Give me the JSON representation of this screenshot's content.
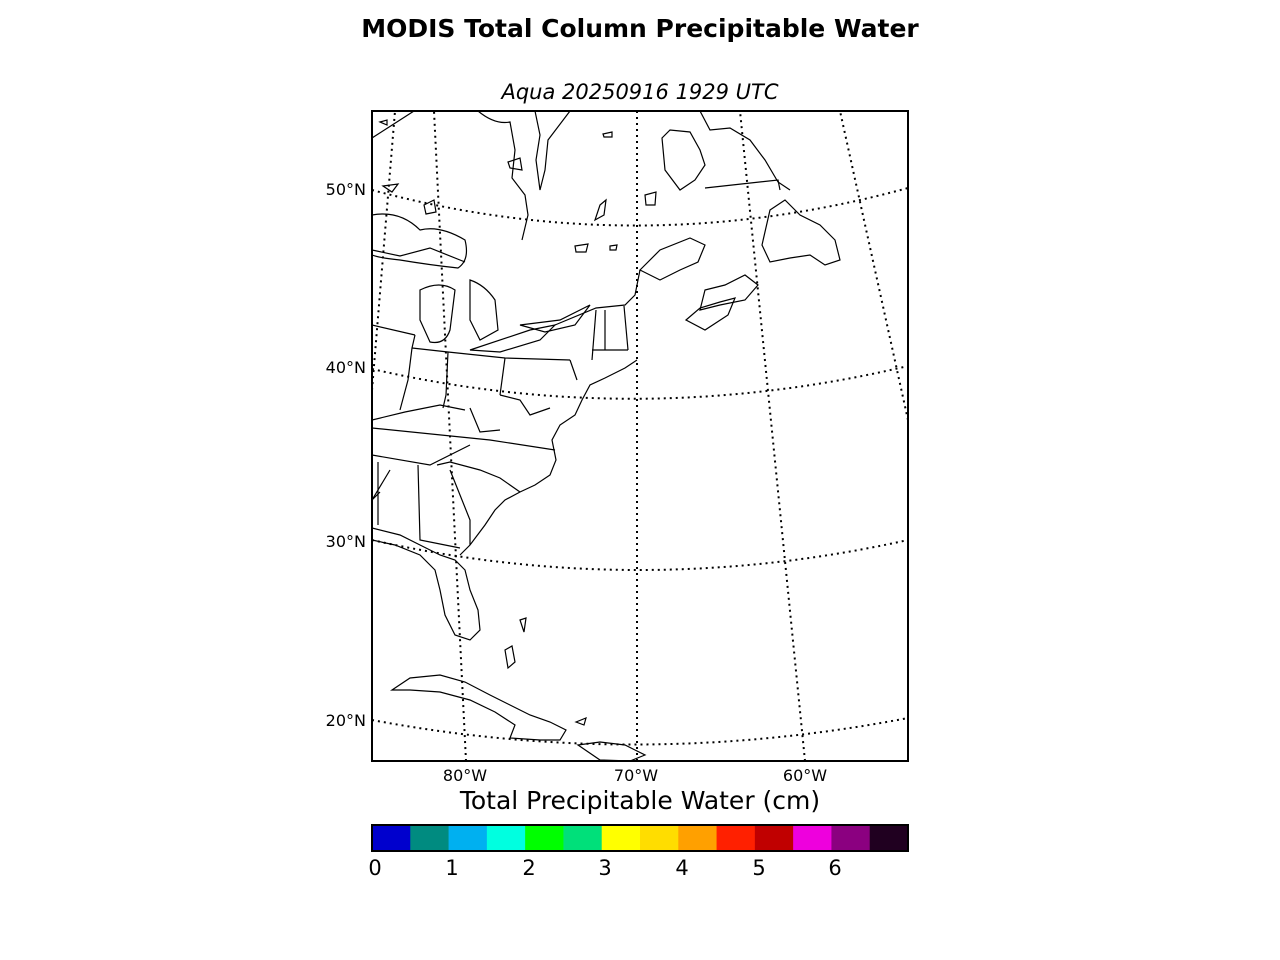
{
  "title": "MODIS Total Column Precipitable Water",
  "subtitle": "Aqua 20250916 1929 UTC",
  "map": {
    "lat_labels": [
      "50°N",
      "40°N",
      "30°N",
      "20°N"
    ],
    "lon_labels": [
      "80°W",
      "70°W",
      "60°W"
    ],
    "gridlines": "dotted",
    "boundaries": [
      "coastlines",
      "countries",
      "states"
    ]
  },
  "colorbar": {
    "label": "Total Precipitable Water (cm)",
    "ticks": [
      "0",
      "1",
      "2",
      "3",
      "4",
      "5",
      "6"
    ],
    "range": [
      0,
      7
    ],
    "colors": [
      "#0000cd",
      "#008b80",
      "#00b0f0",
      "#00ffe0",
      "#00ff00",
      "#00e07a",
      "#ffff00",
      "#ffdd00",
      "#ffa000",
      "#ff2000",
      "#c00000",
      "#ee00dd",
      "#8b0080",
      "#200020"
    ]
  }
}
